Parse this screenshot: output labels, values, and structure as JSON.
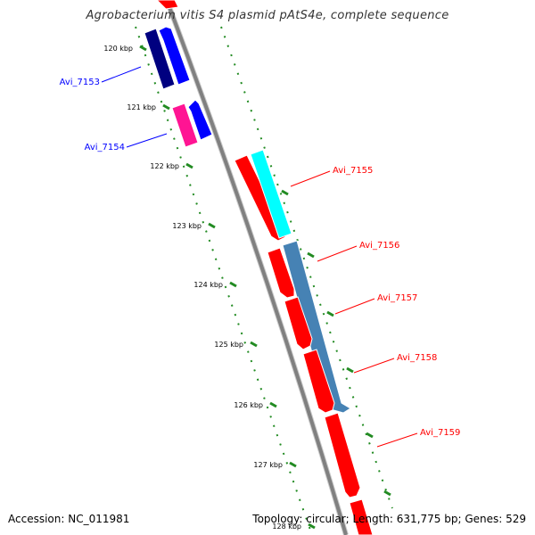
{
  "title": "Agrobacterium vitis S4 plasmid pAtS4e, complete sequence",
  "footer": {
    "accession": "Accession: NC_011981",
    "summary": "Topology: circular; Length: 631,775 bp; Genes: 529"
  },
  "ticks": [
    "120 kbp",
    "121 kbp",
    "122 kbp",
    "123 kbp",
    "124 kbp",
    "125 kbp",
    "126 kbp",
    "127 kbp",
    "128 kbp"
  ],
  "genes": [
    {
      "name": "Avi_7153",
      "strand": "reverse",
      "color": "#0000ff",
      "cog_color": "#000080"
    },
    {
      "name": "Avi_7154",
      "strand": "reverse",
      "color": "#0000ff",
      "cog_color": "#ff1493"
    },
    {
      "name": "Avi_7155",
      "strand": "forward",
      "color": "#ff0000",
      "cog_color": "#00ffff"
    },
    {
      "name": "Avi_7156",
      "strand": "forward",
      "color": "#ff0000",
      "cog_color": "#4682b4"
    },
    {
      "name": "Avi_7157",
      "strand": "forward",
      "color": "#ff0000",
      "cog_color": "#4682b4"
    },
    {
      "name": "Avi_7158",
      "strand": "forward",
      "color": "#ff0000",
      "cog_color": "#4682b4"
    },
    {
      "name": "Avi_7159",
      "strand": "forward",
      "color": "#ff0000",
      "cog_color": ""
    }
  ],
  "colors": {
    "backbone": "#808080",
    "tick_mark": "#228b22",
    "reverse_label": "#0000ff",
    "forward_label": "#ff0000"
  }
}
